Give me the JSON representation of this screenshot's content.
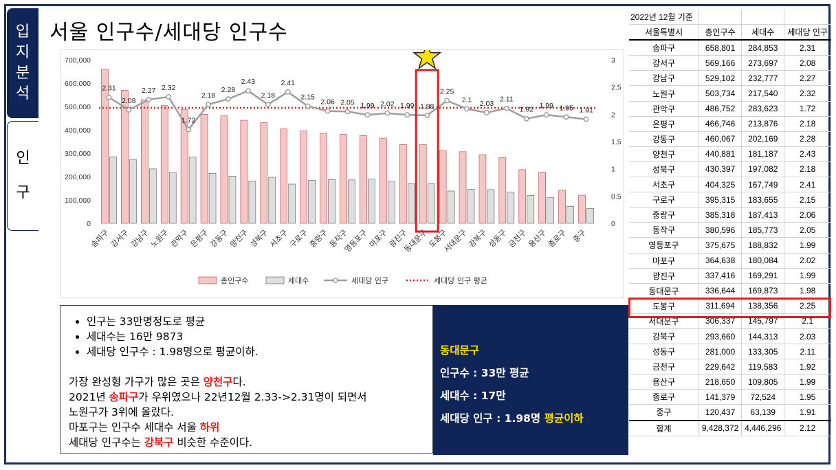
{
  "side_tabs": {
    "active": [
      "입",
      "지",
      "분",
      "석"
    ],
    "inactive": [
      "인",
      "구"
    ]
  },
  "title": "서울 인구수/세대당 인구수",
  "chart_data": {
    "type": "bar",
    "categories": [
      "송파구",
      "강서구",
      "강남구",
      "노원구",
      "관악구",
      "은평구",
      "강동구",
      "양천구",
      "성북구",
      "서초구",
      "구로구",
      "중랑구",
      "동작구",
      "영등포구",
      "마포구",
      "광진구",
      "동대문구",
      "도봉구",
      "서대문구",
      "강북구",
      "성동구",
      "금천구",
      "용산구",
      "종로구",
      "중구"
    ],
    "series": [
      {
        "name": "총인구수",
        "kind": "bar",
        "color": "#f4c7c6",
        "values": [
          658801,
          569166,
          529102,
          503734,
          486752,
          466746,
          460067,
          440881,
          430397,
          404325,
          395315,
          385318,
          380596,
          375675,
          364638,
          337416,
          336644,
          311694,
          306337,
          293660,
          281000,
          229642,
          218650,
          141379,
          120437
        ]
      },
      {
        "name": "세대수",
        "kind": "bar",
        "color": "#dedede",
        "values": [
          284853,
          273697,
          232777,
          217540,
          283623,
          213876,
          202169,
          181187,
          197082,
          167749,
          183655,
          187413,
          185773,
          188832,
          180084,
          169291,
          169873,
          138356,
          145797,
          144313,
          133305,
          119583,
          109805,
          72524,
          63139
        ]
      },
      {
        "name": "세대당 인구",
        "kind": "line",
        "axis": "right",
        "color": "#9e9e9e",
        "values": [
          2.31,
          2.08,
          2.27,
          2.32,
          1.72,
          2.18,
          2.28,
          2.43,
          2.18,
          2.41,
          2.15,
          2.06,
          2.05,
          1.99,
          2.02,
          1.99,
          1.98,
          2.25,
          2.1,
          2.03,
          2.11,
          1.92,
          1.99,
          1.95,
          1.91
        ]
      },
      {
        "name": "세대당 인구 평균",
        "kind": "dotted-line",
        "axis": "right",
        "color": "#e02020",
        "value": 2.12
      }
    ],
    "y_left": {
      "ylim": [
        0,
        700000
      ],
      "ticks": [
        "0",
        "100,000",
        "200,000",
        "300,000",
        "400,000",
        "500,000",
        "600,000",
        "700,000"
      ]
    },
    "y_right": {
      "ylim": [
        0,
        3
      ],
      "ticks": [
        "0",
        "0.5",
        "1",
        "1.5",
        "2",
        "2.5",
        "3"
      ]
    },
    "highlight_category": "동대문구",
    "legend_position": "bottom"
  },
  "notes": {
    "bullets": [
      "인구는 33만명정도로 평균",
      "세대수는 16만 9873",
      "세대당 인구수 : 1.98명으로 평균이하."
    ],
    "p1": [
      "가장 완성형 가구가 많은 곳은 ",
      "양천구",
      "다."
    ],
    "p2": [
      "2021년 ",
      "송파구",
      "가 우위였으나 22년12월 2.33->2.31명이 되면서"
    ],
    "p3": "노원구가 3위에 올랐다.",
    "p4": [
      "마포구는 인구수 세대수 서울 ",
      "하위"
    ],
    "p5": [
      "세대당 인구수는 ",
      "강북구",
      " 비슷한 수준이다."
    ]
  },
  "summary": {
    "district": "동대문구",
    "population": "인구수 :  33만 평균",
    "households": "세대수 : 17만",
    "per_household": "세대당 인구 : 1.98명 ",
    "per_household_note": "평균이하"
  },
  "table": {
    "date": "2022년 12월 기준",
    "headers": [
      "서울특별시",
      "총인구수",
      "세대수",
      "세대당 인구"
    ],
    "rows": [
      [
        "송파구",
        "658,801",
        "284,853",
        "2.31"
      ],
      [
        "강서구",
        "569,166",
        "273,697",
        "2.08"
      ],
      [
        "강남구",
        "529,102",
        "232,777",
        "2.27"
      ],
      [
        "노원구",
        "503,734",
        "217,540",
        "2.32"
      ],
      [
        "관악구",
        "486,752",
        "283,623",
        "1.72"
      ],
      [
        "은평구",
        "466,746",
        "213,876",
        "2.18"
      ],
      [
        "강동구",
        "460,067",
        "202,169",
        "2.28"
      ],
      [
        "양천구",
        "440,881",
        "181,187",
        "2.43"
      ],
      [
        "성북구",
        "430,397",
        "197,082",
        "2.18"
      ],
      [
        "서초구",
        "404,325",
        "167,749",
        "2.41"
      ],
      [
        "구로구",
        "395,315",
        "183,655",
        "2.15"
      ],
      [
        "중랑구",
        "385,318",
        "187,413",
        "2.06"
      ],
      [
        "동작구",
        "380,596",
        "185,773",
        "2.05"
      ],
      [
        "영등포구",
        "375,675",
        "188,832",
        "1.99"
      ],
      [
        "마포구",
        "364,638",
        "180,084",
        "2.02"
      ],
      [
        "광진구",
        "337,416",
        "169,291",
        "1.99"
      ],
      [
        "동대문구",
        "336,644",
        "169,873",
        "1.98"
      ],
      [
        "도봉구",
        "311,694",
        "138,356",
        "2.25"
      ],
      [
        "서대문구",
        "306,337",
        "145,797",
        "2.1"
      ],
      [
        "강북구",
        "293,660",
        "144,313",
        "2.03"
      ],
      [
        "성동구",
        "281,000",
        "133,305",
        "2.11"
      ],
      [
        "금천구",
        "229,642",
        "119,583",
        "1.92"
      ],
      [
        "용산구",
        "218,650",
        "109,805",
        "1.99"
      ],
      [
        "종로구",
        "141,379",
        "72,524",
        "1.95"
      ],
      [
        "중구",
        "120,437",
        "63,139",
        "1.91"
      ]
    ],
    "total": [
      "합계",
      "9,428,372",
      "4,446,296",
      "2.12"
    ]
  }
}
